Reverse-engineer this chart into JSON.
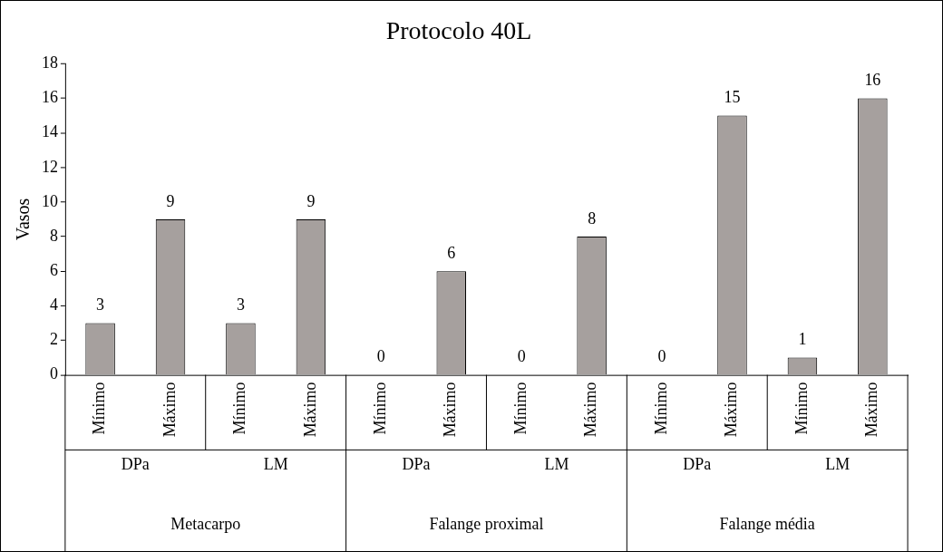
{
  "chart_data": {
    "type": "bar",
    "title": "Protocolo 40L",
    "ylabel": "Vasos",
    "categories": [
      "Mínimo",
      "Máximo",
      "Mínimo",
      "Máximo",
      "Mínimo",
      "Máximo",
      "Mínimo",
      "Máximo",
      "Mínimo",
      "Máximo",
      "Mínimo",
      "Máximo"
    ],
    "values": [
      3,
      9,
      3,
      9,
      0,
      6,
      0,
      8,
      0,
      15,
      1,
      16
    ],
    "color": "#a6a09e",
    "ylim": [
      0,
      18
    ],
    "yticks": [
      0,
      2,
      4,
      6,
      8,
      10,
      12,
      14,
      16,
      18
    ],
    "grid": false,
    "legend": false,
    "data_labels": true,
    "annotations": [
      "DPa",
      "LM",
      "DPa",
      "LM",
      "DPa",
      "LM",
      "Metacarpo",
      "Falange proximal",
      "Falange média"
    ]
  }
}
